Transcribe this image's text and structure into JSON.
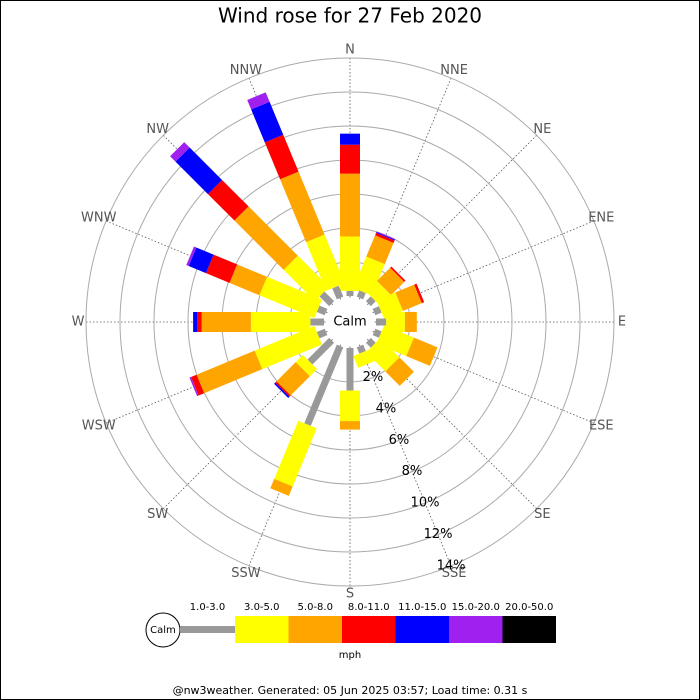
{
  "chart_data": {
    "type": "windrose",
    "title": "Wind rose for 27 Feb 2020",
    "center_label": "Calm",
    "legend_title": "mph",
    "footer": "@nw3weather. Generated: 05 Jun 2025 03:57; Load time: 0.31 s",
    "categories": [
      "N",
      "NNE",
      "NE",
      "ENE",
      "E",
      "ESE",
      "SE",
      "SSE",
      "S",
      "SSW",
      "SW",
      "WSW",
      "W",
      "WNW",
      "NW",
      "NNW"
    ],
    "ylim": [
      0,
      14
    ],
    "yticks": [
      {
        "value": 2,
        "label": "2%"
      },
      {
        "value": 4,
        "label": "4%"
      },
      {
        "value": 6,
        "label": "6%"
      },
      {
        "value": 8,
        "label": "8%"
      },
      {
        "value": 10,
        "label": "10%"
      },
      {
        "value": 12,
        "label": "12%"
      },
      {
        "value": 14,
        "label": "14%"
      }
    ],
    "grid": true,
    "series": [
      {
        "name": "1.0-3.0",
        "color": "#999999",
        "values": [
          0.3,
          0.4,
          0.4,
          0.4,
          0.6,
          0.4,
          0.4,
          0.4,
          2.5,
          5.0,
          1.8,
          0.5,
          0.8,
          0.5,
          0.8,
          0.7
        ]
      },
      {
        "name": "3.0-5.0",
        "color": "#ffff00",
        "values": [
          3.2,
          2.0,
          0.9,
          1.2,
          1.1,
          1.9,
          1.6,
          0.75,
          1.8,
          3.7,
          0.6,
          3.8,
          3.5,
          3.5,
          2.6,
          3.1
        ]
      },
      {
        "name": "5.0-8.0",
        "color": "#ffa500",
        "values": [
          3.7,
          1.35,
          1.1,
          1.2,
          0.7,
          1.5,
          1.2,
          0,
          0.5,
          0.6,
          1.6,
          3.7,
          2.9,
          1.9,
          4.1,
          4.0
        ]
      },
      {
        "name": "8.0-11.0",
        "color": "#ff0000",
        "values": [
          1.7,
          0.15,
          0.1,
          0.15,
          0,
          0,
          0,
          0,
          0,
          0,
          0.1,
          0.35,
          0.25,
          1.5,
          2.2,
          2.35
        ]
      },
      {
        "name": "11.0-15.0",
        "color": "#0000ff",
        "values": [
          0.65,
          0.05,
          0,
          0,
          0,
          0,
          0,
          0,
          0,
          0,
          0.1,
          0,
          0.25,
          1.1,
          2.7,
          2.1
        ]
      },
      {
        "name": "15.0-20.0",
        "color": "#a020f0",
        "values": [
          0,
          0.05,
          0,
          0,
          0,
          0,
          0,
          0,
          0,
          0,
          0,
          0.1,
          0,
          0.15,
          0.45,
          0.6
        ]
      },
      {
        "name": "20.0-50.0",
        "color": "#000000",
        "values": [
          0,
          0,
          0,
          0,
          0,
          0,
          0,
          0,
          0,
          0,
          0,
          0,
          0,
          0,
          0,
          0
        ]
      }
    ]
  }
}
